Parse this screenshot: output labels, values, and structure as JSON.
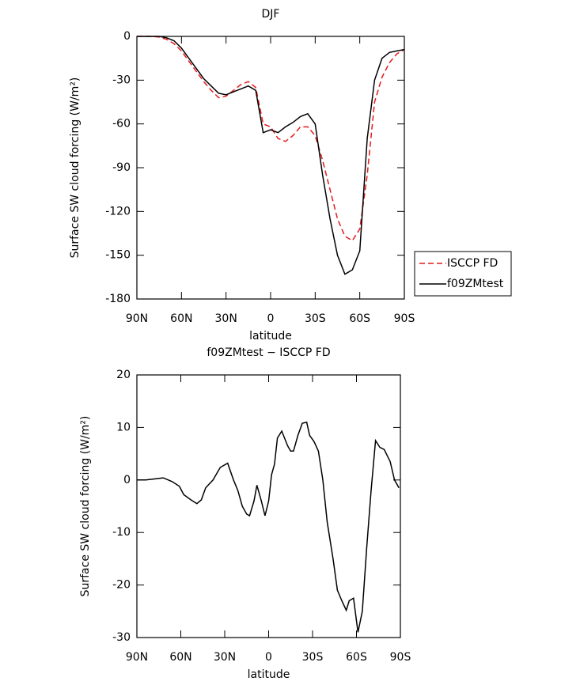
{
  "chart_data": [
    {
      "type": "line",
      "title": "DJF",
      "x_label": "latitude",
      "y_label": "Surface SW cloud forcing (W/m²)",
      "x": [
        90,
        85,
        80,
        75,
        70,
        65,
        60,
        55,
        50,
        45,
        40,
        35,
        30,
        25,
        20,
        15,
        10,
        5,
        0,
        -5,
        -10,
        -15,
        -20,
        -25,
        -30,
        -35,
        -40,
        -45,
        -50,
        -55,
        -60,
        -65,
        -70,
        -75,
        -80,
        -85,
        -90
      ],
      "series": [
        {
          "name": "ISCCP FD",
          "color": "#e41a1c",
          "linestyle": "dashed",
          "values": [
            0,
            0,
            0,
            -0.5,
            -2,
            -5,
            -10,
            -17,
            -24,
            -31,
            -37,
            -42,
            -41,
            -37,
            -33,
            -31,
            -35,
            -60,
            -62,
            -70,
            -72,
            -68,
            -62,
            -62,
            -68,
            -85,
            -105,
            -125,
            -137,
            -140,
            -132,
            -95,
            -45,
            -28,
            -18,
            -12,
            -9
          ]
        },
        {
          "name": "f09ZMtest",
          "color": "#000000",
          "linestyle": "solid",
          "values": [
            0,
            0,
            0,
            0,
            -1,
            -3,
            -8,
            -15,
            -22,
            -29,
            -34,
            -39,
            -40,
            -38,
            -36,
            -34,
            -37,
            -66,
            -64,
            -66,
            -62,
            -59,
            -55,
            -53,
            -60,
            -95,
            -125,
            -150,
            -163,
            -160,
            -147,
            -70,
            -30,
            -15,
            -11,
            -10,
            -9
          ]
        }
      ],
      "xlim": [
        90,
        -90
      ],
      "xticks": [
        {
          "value": 90,
          "label": "90N"
        },
        {
          "value": 60,
          "label": "60N"
        },
        {
          "value": 30,
          "label": "30N"
        },
        0,
        {
          "value": -30,
          "label": "30S"
        },
        {
          "value": -60,
          "label": "60S"
        },
        {
          "value": -90,
          "label": "90S"
        }
      ],
      "ylim": [
        -180,
        0
      ],
      "yticks": [
        0,
        -30,
        -60,
        -90,
        -120,
        -150,
        -180
      ],
      "legend": "right"
    },
    {
      "type": "line",
      "title": "f09ZMtest − ISCCP FD",
      "x_label": "latitude",
      "y_label": "Surface SW cloud forcing (W/m²)",
      "x": [
        90,
        84,
        78,
        72,
        66,
        61,
        58,
        53,
        49,
        46,
        43,
        38,
        33,
        28,
        24,
        21,
        18,
        15,
        13,
        10,
        8,
        5,
        2.5,
        0,
        -2,
        -4,
        -6,
        -9,
        -13,
        -15,
        -17,
        -20,
        -23,
        -26,
        -28,
        -31,
        -34,
        -37,
        -40,
        -44,
        -47,
        -50,
        -53,
        -55,
        -58,
        -61,
        -64,
        -67,
        -70,
        -73,
        -76,
        -79,
        -83,
        -86,
        -89
      ],
      "series": [
        {
          "color": "#000000",
          "linestyle": "solid",
          "values": [
            0,
            0,
            0.2,
            0.4,
            -0.3,
            -1.2,
            -2.8,
            -3.8,
            -4.5,
            -3.8,
            -1.5,
            0,
            2.4,
            3.2,
            0,
            -2,
            -5,
            -6.5,
            -6.8,
            -4,
            -1,
            -4,
            -6.8,
            -4,
            1,
            3,
            8,
            9.3,
            6.5,
            5.5,
            5.5,
            8.5,
            10.8,
            11,
            8.5,
            7.3,
            5.5,
            0,
            -8,
            -15,
            -21,
            -23,
            -24.8,
            -23,
            -22.5,
            -29,
            -25,
            -13,
            -2,
            7.5,
            6.2,
            5.8,
            3.5,
            0,
            -1.5
          ]
        }
      ],
      "xlim": [
        90,
        -90
      ],
      "xticks": [
        {
          "value": 90,
          "label": "90N"
        },
        {
          "value": 60,
          "label": "60N"
        },
        {
          "value": 30,
          "label": "30N"
        },
        0,
        {
          "value": -30,
          "label": "30S"
        },
        {
          "value": -60,
          "label": "60S"
        },
        {
          "value": -90,
          "label": "90S"
        }
      ],
      "ylim": [
        -30,
        20
      ],
      "yticks": [
        20,
        10,
        0,
        -10,
        -20,
        -30
      ]
    }
  ]
}
